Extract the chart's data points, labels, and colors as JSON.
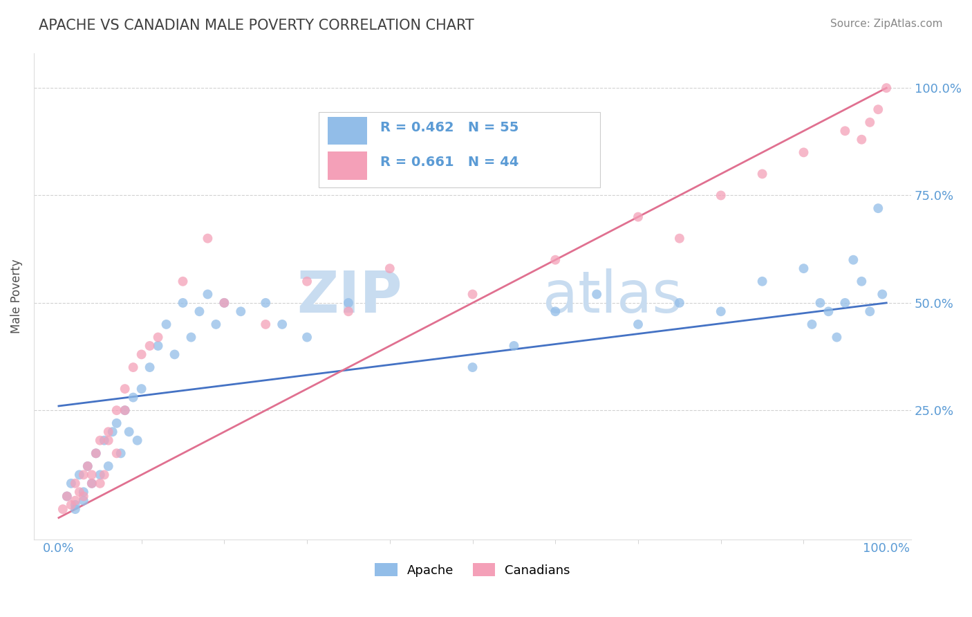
{
  "title": "APACHE VS CANADIAN MALE POVERTY CORRELATION CHART",
  "source_text": "Source: ZipAtlas.com",
  "ylabel": "Male Poverty",
  "watermark": "ZIPatlas",
  "apache_R": 0.462,
  "apache_N": 55,
  "canadians_R": 0.661,
  "canadians_N": 44,
  "apache_color": "#92BDE8",
  "canadians_color": "#F4A0B8",
  "apache_line_color": "#4472C4",
  "canadians_line_color": "#E07090",
  "background_color": "#FFFFFF",
  "grid_color": "#CCCCCC",
  "title_color": "#404040",
  "axis_label_color": "#5B9BD5",
  "watermark_color": "#D0E4F5",
  "apache_x": [
    1.0,
    1.5,
    2.0,
    2.5,
    3.0,
    3.5,
    4.0,
    4.5,
    5.0,
    5.5,
    6.0,
    6.5,
    7.0,
    7.5,
    8.0,
    8.5,
    9.0,
    9.5,
    10.0,
    11.0,
    12.0,
    13.0,
    14.0,
    15.0,
    16.0,
    17.0,
    18.0,
    19.0,
    20.0,
    22.0,
    25.0,
    27.0,
    30.0,
    35.0,
    50.0,
    55.0,
    60.0,
    65.0,
    70.0,
    75.0,
    80.0,
    85.0,
    90.0,
    91.0,
    92.0,
    93.0,
    94.0,
    95.0,
    96.0,
    97.0,
    98.0,
    99.0,
    99.5,
    2.0,
    3.0
  ],
  "apache_y": [
    5.0,
    8.0,
    3.0,
    10.0,
    6.0,
    12.0,
    8.0,
    15.0,
    10.0,
    18.0,
    12.0,
    20.0,
    22.0,
    15.0,
    25.0,
    20.0,
    28.0,
    18.0,
    30.0,
    35.0,
    40.0,
    45.0,
    38.0,
    50.0,
    42.0,
    48.0,
    52.0,
    45.0,
    50.0,
    48.0,
    50.0,
    45.0,
    42.0,
    50.0,
    35.0,
    40.0,
    48.0,
    52.0,
    45.0,
    50.0,
    48.0,
    55.0,
    58.0,
    45.0,
    50.0,
    48.0,
    42.0,
    50.0,
    60.0,
    55.0,
    48.0,
    72.0,
    52.0,
    2.0,
    4.0
  ],
  "canadians_x": [
    0.5,
    1.0,
    1.5,
    2.0,
    2.5,
    3.0,
    3.5,
    4.0,
    4.5,
    5.0,
    5.5,
    6.0,
    7.0,
    8.0,
    9.0,
    10.0,
    11.0,
    12.0,
    15.0,
    18.0,
    20.0,
    25.0,
    30.0,
    35.0,
    40.0,
    50.0,
    60.0,
    70.0,
    75.0,
    80.0,
    85.0,
    90.0,
    95.0,
    97.0,
    98.0,
    99.0,
    100.0,
    3.0,
    5.0,
    7.0,
    4.0,
    6.0,
    2.0,
    8.0
  ],
  "canadians_y": [
    2.0,
    5.0,
    3.0,
    8.0,
    6.0,
    10.0,
    12.0,
    8.0,
    15.0,
    18.0,
    10.0,
    20.0,
    25.0,
    30.0,
    35.0,
    38.0,
    40.0,
    42.0,
    55.0,
    65.0,
    50.0,
    45.0,
    55.0,
    48.0,
    58.0,
    52.0,
    60.0,
    70.0,
    65.0,
    75.0,
    80.0,
    85.0,
    90.0,
    88.0,
    92.0,
    95.0,
    100.0,
    5.0,
    8.0,
    15.0,
    10.0,
    18.0,
    4.0,
    25.0
  ],
  "apache_line_x0": 0,
  "apache_line_y0": 26,
  "apache_line_x1": 100,
  "apache_line_y1": 50,
  "canadians_line_x0": 0,
  "canadians_line_y0": 0,
  "canadians_line_x1": 100,
  "canadians_line_y1": 100,
  "x_tick_labels": [
    "0.0%",
    "100.0%"
  ],
  "x_tick_positions": [
    0,
    100
  ],
  "y_tick_labels": [
    "25.0%",
    "50.0%",
    "75.0%",
    "100.0%"
  ],
  "y_tick_positions": [
    25,
    50,
    75,
    100
  ],
  "minor_x_ticks": [
    10,
    20,
    30,
    40,
    50,
    60,
    70,
    80,
    90
  ],
  "xlim": [
    -3,
    103
  ],
  "ylim": [
    -5,
    108
  ]
}
